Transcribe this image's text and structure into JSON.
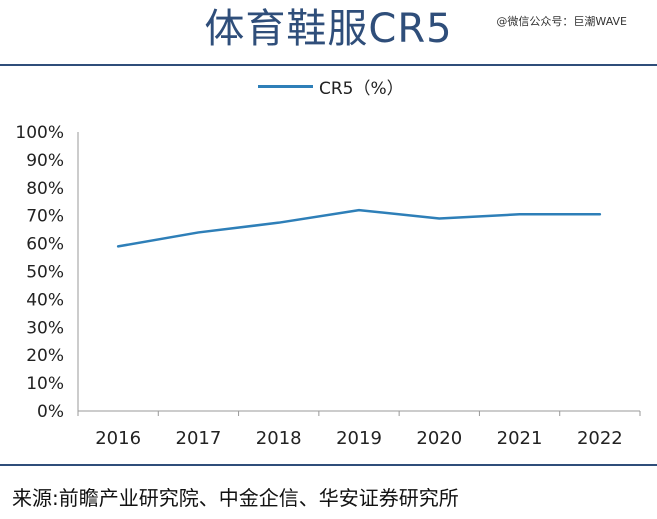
{
  "header": {
    "title": "体育鞋服CR5",
    "watermark": "@微信公众号：巨潮WAVE"
  },
  "footer": {
    "source": "来源:前瞻产业研究院、中金企信、华安证券研究所"
  },
  "colors": {
    "accent": "#2f4e7a",
    "series": "#2e7fb8",
    "axis": "#999999"
  },
  "chart_data": {
    "type": "line",
    "x": [
      "2016",
      "2017",
      "2018",
      "2019",
      "2020",
      "2021",
      "2022"
    ],
    "series": [
      {
        "name": "CR5（%）",
        "values": [
          59,
          64,
          67.5,
          72,
          69,
          70.5,
          70.5
        ]
      }
    ],
    "y_ticks": [
      "100%",
      "90%",
      "80%",
      "70%",
      "60%",
      "50%",
      "40%",
      "30%",
      "20%",
      "10%",
      "0%"
    ],
    "ylim": [
      0,
      100
    ],
    "legend_position": "top-center",
    "grid": false
  }
}
